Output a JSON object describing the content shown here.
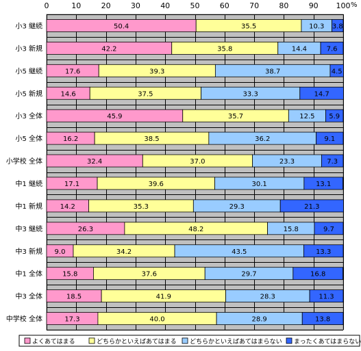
{
  "chart_data": {
    "type": "bar",
    "orientation": "horizontal",
    "stacked": true,
    "title": "",
    "xlabel": "",
    "ylabel": "",
    "unit": "%",
    "xlim": [
      0,
      100
    ],
    "xticks": [
      0,
      10,
      20,
      30,
      40,
      50,
      60,
      70,
      80,
      90,
      100
    ],
    "grid": true,
    "legend_position": "bottom",
    "categories": [
      "小3 継続",
      "小3 新規",
      "小5 継続",
      "小5 新規",
      "小3 全体",
      "小5 全体",
      "小学校 全体",
      "中1 継続",
      "中1 新規",
      "中3 継続",
      "中3 新規",
      "中1 全体",
      "中3 全体",
      "中学校 全体"
    ],
    "series": [
      {
        "name": "よくあてはまる",
        "color": "#ff99cc",
        "values": [
          50.4,
          42.2,
          17.6,
          14.6,
          45.9,
          16.2,
          32.4,
          17.1,
          14.2,
          26.3,
          9.0,
          15.8,
          18.5,
          17.3
        ]
      },
      {
        "name": "どちらかといえばあてはまる",
        "color": "#ffff99",
        "values": [
          35.5,
          35.8,
          39.3,
          37.5,
          35.7,
          38.5,
          37.0,
          39.6,
          35.3,
          48.2,
          34.2,
          37.6,
          41.9,
          40.0
        ]
      },
      {
        "name": "どちらかといえばあてはまらない",
        "color": "#99ccff",
        "values": [
          10.3,
          14.4,
          38.7,
          33.3,
          12.5,
          36.2,
          23.3,
          30.1,
          29.3,
          15.8,
          43.5,
          29.7,
          28.3,
          28.9
        ]
      },
      {
        "name": "まったくあてはまらない",
        "color": "#3366ff",
        "values": [
          3.8,
          7.6,
          4.5,
          14.7,
          5.9,
          9.1,
          7.3,
          13.1,
          21.3,
          9.7,
          13.3,
          16.8,
          11.3,
          13.8
        ]
      }
    ],
    "data_labels": [
      [
        "50.4",
        "42.2",
        "17.6",
        "14.6",
        "45.9",
        "16.2",
        "32.4",
        "17.1",
        "14.2",
        "26.3",
        "9.0",
        "15.8",
        "18.5",
        "17.3"
      ],
      [
        "35.5",
        "35.8",
        "39.3",
        "37.5",
        "35.7",
        "38.5",
        "37.0",
        "39.6",
        "35.3",
        "48.2",
        "34.2",
        "37.6",
        "41.9",
        "40.0"
      ],
      [
        "10.3",
        "14.4",
        "38.7",
        "33.3",
        "12.5",
        "36.2",
        "23.3",
        "30.1",
        "29.3",
        "15.8",
        "43.5",
        "29.7",
        "28.3",
        "28.9"
      ],
      [
        "3.8",
        "7.6",
        "4.5",
        "14.7",
        "5.9",
        "9.1",
        "7.3",
        "13.1",
        "21.3",
        "9.7",
        "13.3",
        "16.8",
        "11.3",
        "13.8"
      ]
    ],
    "plot_background": "#c0c0c0"
  }
}
